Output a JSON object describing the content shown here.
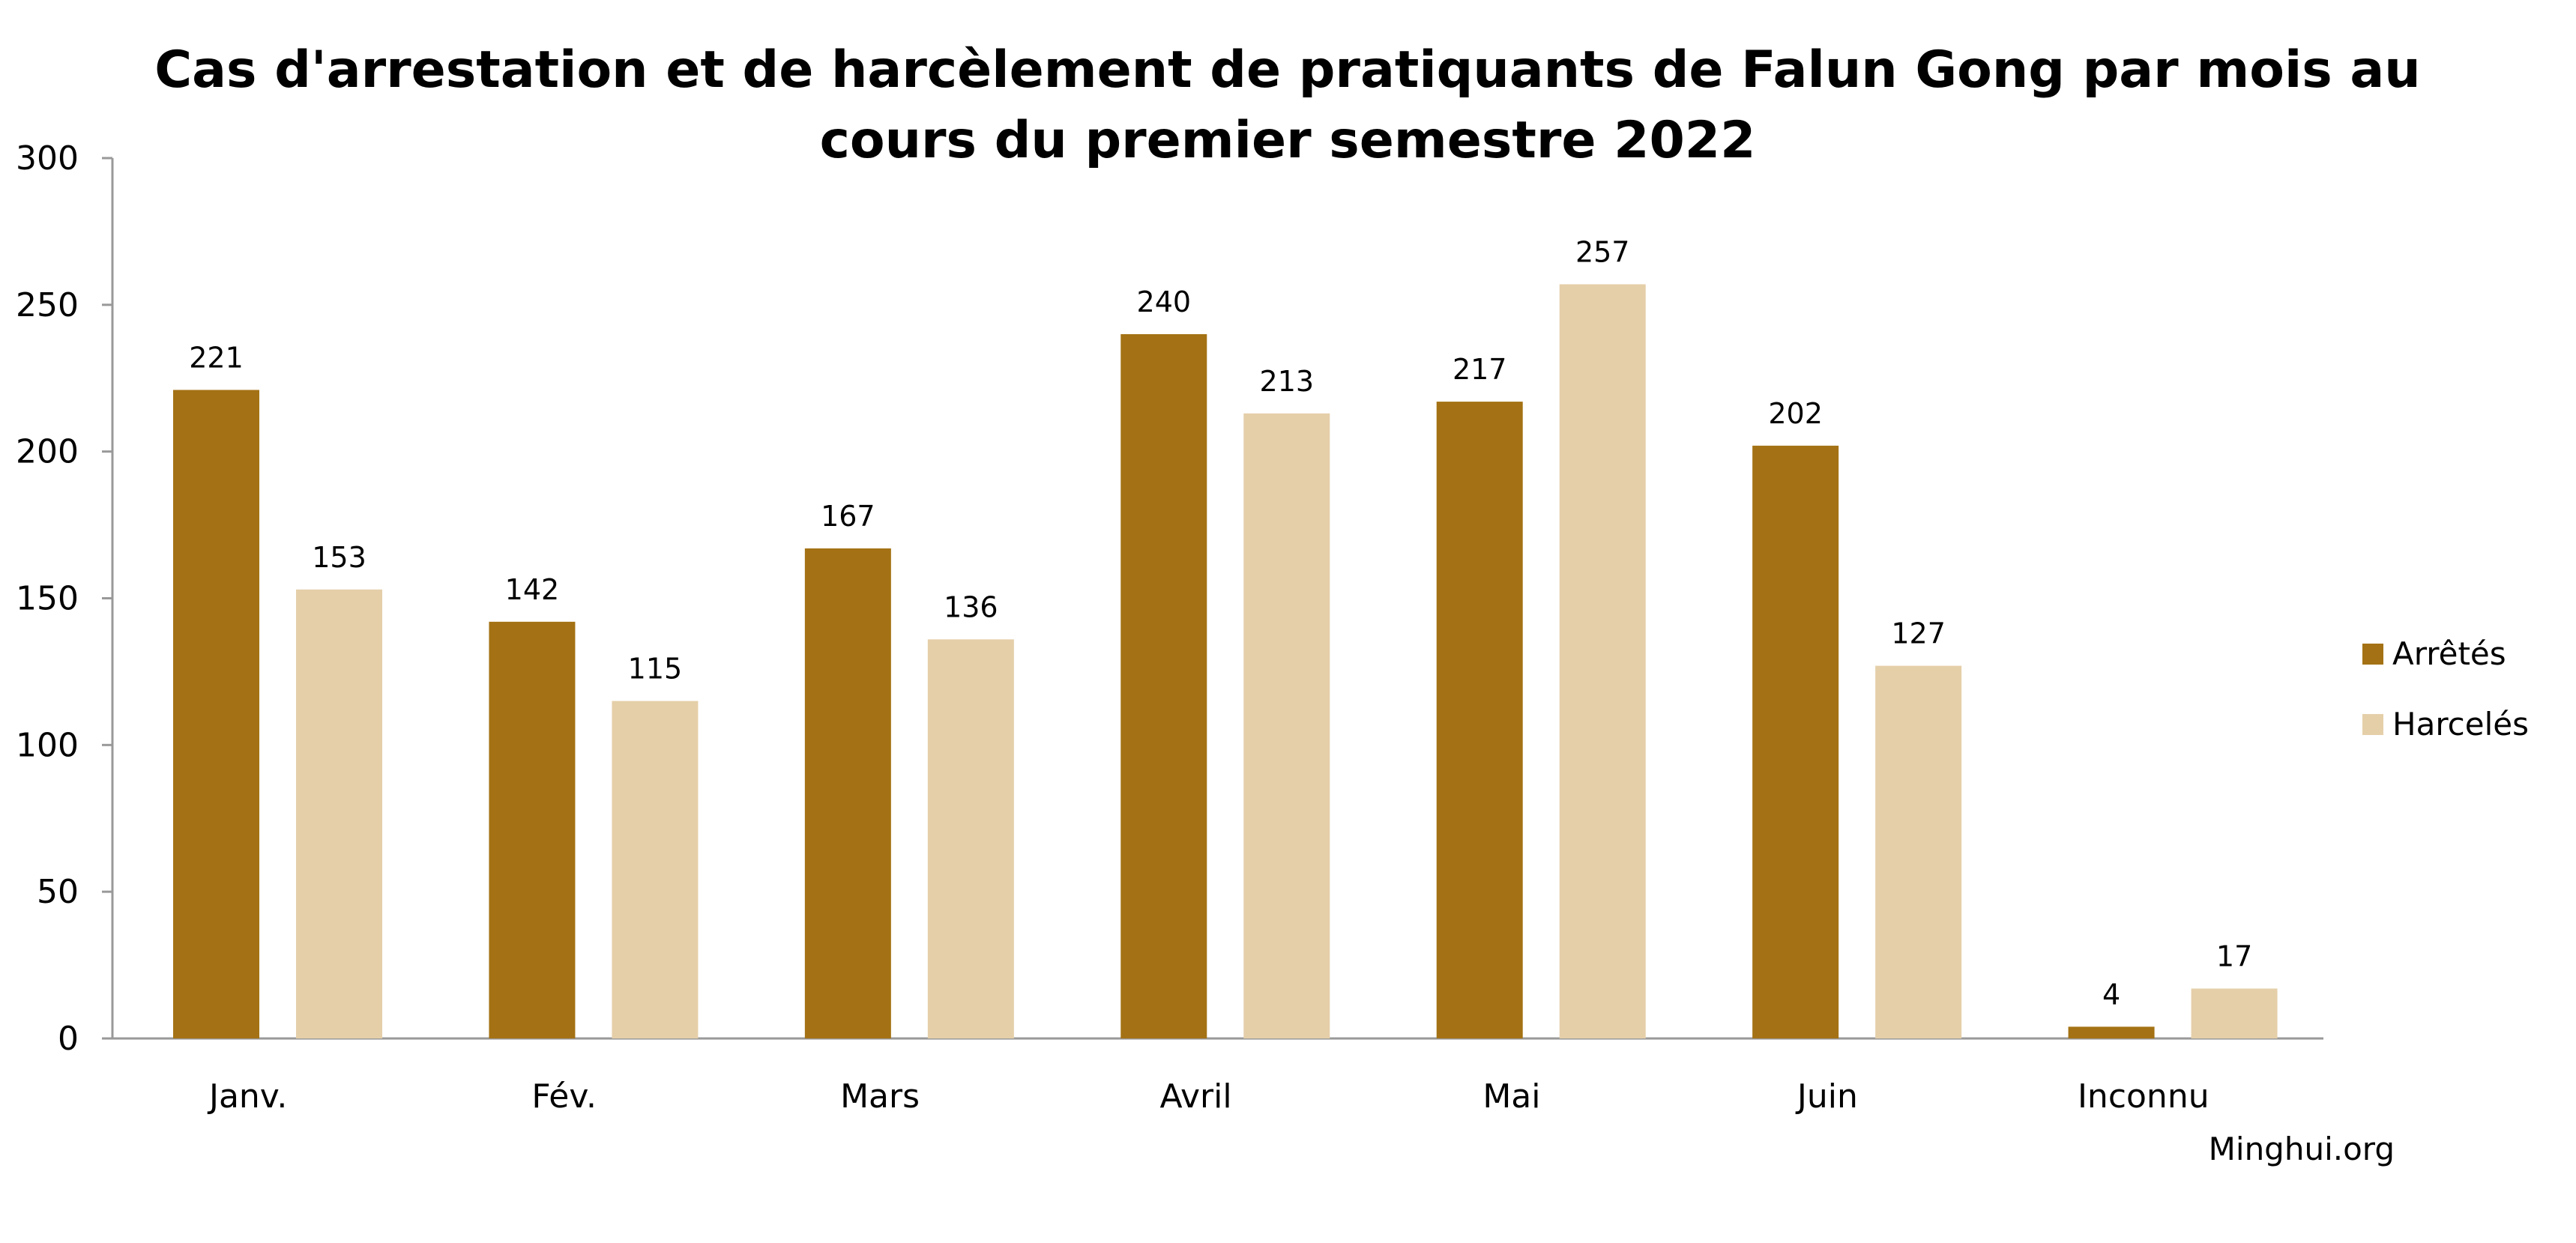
{
  "chart_data": {
    "type": "bar",
    "title_lines": [
      "Cas d'arrestation et de harcèlement de pratiquants de Falun Gong par mois au",
      "cours du premier semestre 2022"
    ],
    "categories": [
      "Janv.",
      "Fév.",
      "Mars",
      "Avril",
      "Mai",
      "Juin",
      "Inconnu"
    ],
    "series": [
      {
        "name": "Arrêtés",
        "color": "#A47214",
        "values": [
          221,
          142,
          167,
          240,
          217,
          202,
          4
        ]
      },
      {
        "name": "Harcelés",
        "color": "#E5CFA9",
        "values": [
          153,
          115,
          136,
          213,
          257,
          127,
          17
        ]
      }
    ],
    "ylim": [
      0,
      300
    ],
    "yticks": [
      0,
      50,
      100,
      150,
      200,
      250,
      300
    ],
    "xlabel": "",
    "ylabel": "",
    "grid": false,
    "legend_position": "right",
    "source": "Minghui.org"
  }
}
